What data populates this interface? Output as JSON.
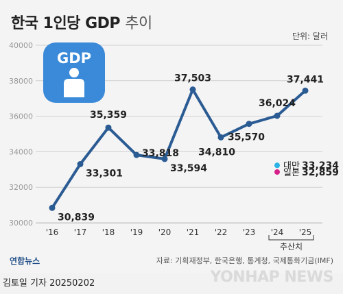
{
  "title": {
    "main": "한국 1인당 GDP",
    "sub": "추이"
  },
  "unit_label": "단위: 달러",
  "icon": {
    "name": "gdp-person-icon",
    "text": "GDP",
    "color": "#3a8ad9"
  },
  "chart_data": {
    "type": "line",
    "title": "한국 1인당 GDP 추이",
    "x": [
      "'16",
      "'17",
      "'18",
      "'19",
      "'20",
      "'21",
      "'22",
      "'23",
      "'24",
      "'25"
    ],
    "series": [
      {
        "name": "",
        "values": [
          30839,
          33301,
          35359,
          33818,
          33594,
          37503,
          34810,
          35570,
          36024,
          37441
        ]
      }
    ],
    "value_labels": [
      "30,839",
      "33,301",
      "35,359",
      "33,818",
      "33,594",
      "37,503",
      "34,810",
      "35,570",
      "36,024",
      "37,441"
    ],
    "comparison_points": [
      {
        "label": "대만",
        "value": 33234,
        "value_label": "33,234",
        "color": "#2bb3e6",
        "x_index": 8
      },
      {
        "label": "일본",
        "value": 32859,
        "value_label": "32,859",
        "color": "#d6208a",
        "x_index": 8
      }
    ],
    "forecast_label": "추산치",
    "forecast_range": [
      "'24",
      "'25"
    ],
    "yticks": [
      30000,
      32000,
      34000,
      36000,
      38000,
      40000
    ],
    "ylim": [
      30000,
      40000
    ],
    "grid": true,
    "line_color": "#2b5b93",
    "xlabel": "",
    "ylabel": ""
  },
  "footer": {
    "logo": "연합뉴스",
    "source": "자료: 기획재정부, 한국은행, 통계청, 국제통화기금(IMF)",
    "credit": "김토일 기자  20250202",
    "watermark": "YONHAP NEWS"
  }
}
